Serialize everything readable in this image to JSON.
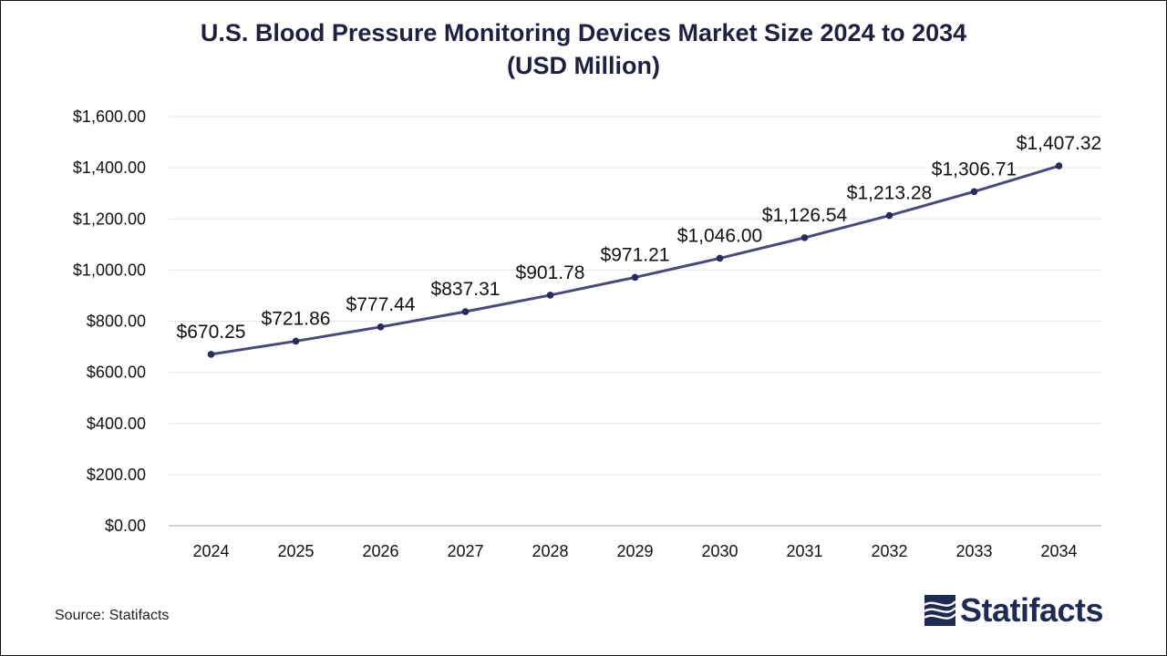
{
  "chart_data": {
    "type": "line",
    "title_lines": [
      "U.S. Blood Pressure Monitoring Devices Market Size 2024 to 2034",
      "(USD Million)"
    ],
    "categories": [
      "2024",
      "2025",
      "2026",
      "2027",
      "2028",
      "2029",
      "2030",
      "2031",
      "2032",
      "2033",
      "2034"
    ],
    "series": [
      {
        "name": "Market Size",
        "values": [
          670.25,
          721.86,
          777.44,
          837.31,
          901.78,
          971.21,
          1046.0,
          1126.54,
          1213.28,
          1306.71,
          1407.32
        ],
        "labels": [
          "$670.25",
          "$721.86",
          "$777.44",
          "$837.31",
          "$901.78",
          "$971.21",
          "$1,046.00",
          "$1,126.54",
          "$1,213.28",
          "$1,306.71",
          "$1,407.32"
        ]
      }
    ],
    "y_ticks": [
      0,
      200,
      400,
      600,
      800,
      1000,
      1200,
      1400,
      1600
    ],
    "y_tick_labels": [
      "$0.00",
      "$200.00",
      "$400.00",
      "$600.00",
      "$800.00",
      "$1,000.00",
      "$1,200.00",
      "$1,400.00",
      "$1,600.00"
    ],
    "ylim": [
      0,
      1600
    ],
    "xlabel": "",
    "ylabel": "",
    "grid": true,
    "line_color": "#4a4a7a",
    "marker_color": "#2a2a5c"
  },
  "footer": {
    "source": "Source: Statifacts",
    "brand": "Statifacts"
  },
  "colors": {
    "title": "#1f2040",
    "brand": "#1f2a52"
  }
}
